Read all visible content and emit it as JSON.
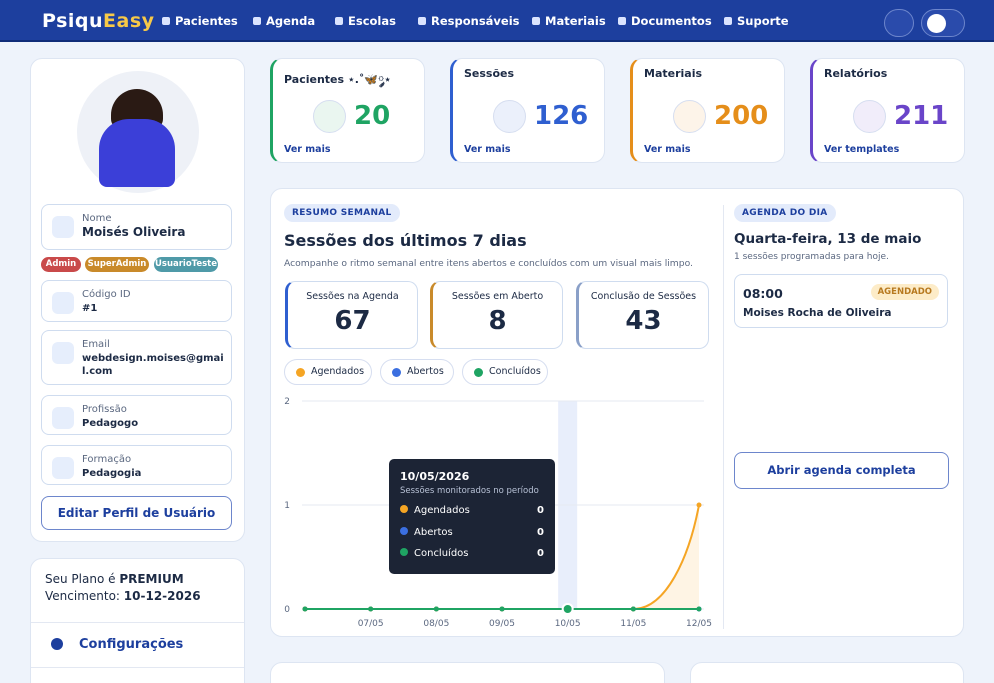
{
  "nav": {
    "logo_a": "Psiqu",
    "logo_b": "Easy",
    "items": [
      "Pacientes",
      "Agenda",
      "Escolas",
      "Responsáveis",
      "Materiais",
      "Documentos",
      "Suporte"
    ]
  },
  "profile": {
    "fields": [
      {
        "label": "Nome",
        "value": "Moisés Oliveira"
      },
      {
        "label": "Código ID",
        "value": "#1"
      },
      {
        "label": "Email",
        "value": "webdesign.moises@gmail.com"
      },
      {
        "label": "Profissão",
        "value": "Pedagogo"
      },
      {
        "label": "Formação",
        "value": "Pedagogia"
      }
    ],
    "badges": [
      "Admin",
      "SuperAdmin",
      "UsuarioTeste"
    ],
    "edit": "Editar Perfil de Usuário"
  },
  "plan": {
    "label": "Seu Plano é",
    "name": "PREMIUM",
    "due_label": "Vencimento:",
    "due": "10-12-2026",
    "settings": "Configurações"
  },
  "stats": [
    {
      "title": "Pacientes ⋆.˚🦋༘⋆",
      "value": 20,
      "link": "Ver mais"
    },
    {
      "title": "Sessões",
      "value": 126,
      "link": "Ver mais"
    },
    {
      "title": "Materiais",
      "value": 200,
      "link": "Ver mais"
    },
    {
      "title": "Relatórios",
      "value": 211,
      "link": "Ver templates"
    }
  ],
  "weekly": {
    "badge": "RESUMO SEMANAL",
    "title": "Sessões dos últimos 7 dias",
    "subtitle": "Acompanhe o ritmo semanal entre itens abertos e concluídos com um visual mais limpo.",
    "kpis": [
      {
        "label": "Sessões na Agenda",
        "value": 67
      },
      {
        "label": "Sessões em Aberto",
        "value": 8
      },
      {
        "label": "Conclusão de Sessões",
        "value": 43
      }
    ]
  },
  "chart_data": {
    "type": "line",
    "categories": [
      null,
      "07/05",
      "08/05",
      "09/05",
      "10/05",
      "11/05",
      "12/05"
    ],
    "series": [
      {
        "name": "Agendados",
        "color": "#f5a524",
        "values": [
          0,
          0,
          0,
          0,
          0,
          0,
          1
        ]
      },
      {
        "name": "Abertos",
        "color": "#3b6fe0",
        "values": [
          0,
          0,
          0,
          0,
          0,
          0,
          0
        ]
      },
      {
        "name": "Concluídos",
        "color": "#1fa463",
        "values": [
          0,
          0,
          0,
          0,
          0,
          0,
          0
        ]
      }
    ],
    "ylim": [
      0,
      2
    ],
    "yticks": [
      0,
      1,
      2
    ],
    "grid": true,
    "tooltip": {
      "title": "10/05/2026",
      "subtitle": "Sessões monitorados no período",
      "values": [
        0,
        0,
        0
      ]
    }
  },
  "agenda": {
    "badge": "AGENDA DO DIA",
    "date": "Quarta-feira, 13 de maio",
    "count": "1 sessões programadas para hoje.",
    "items": [
      {
        "time": "08:00",
        "status": "AGENDADO",
        "name": "Moises Rocha de Oliveira"
      }
    ],
    "button": "Abrir agenda completa"
  }
}
